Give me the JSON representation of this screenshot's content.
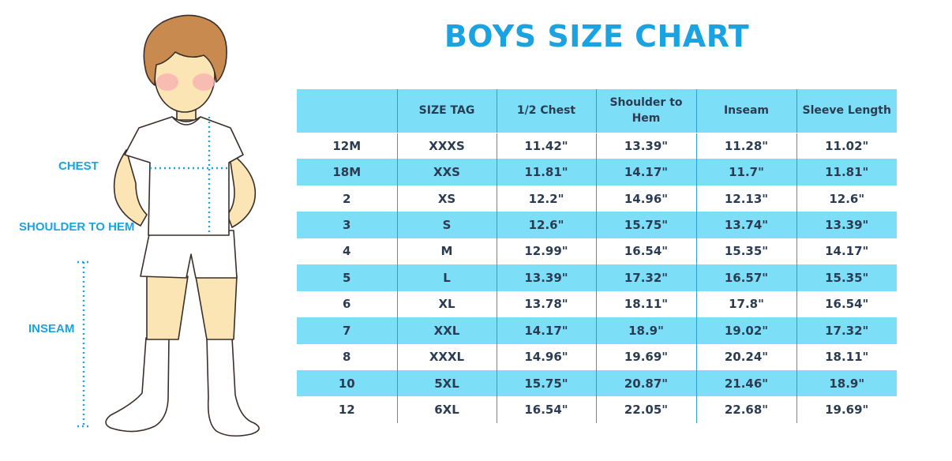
{
  "title": "BOYS SIZE CHART",
  "figure": {
    "labels": {
      "chest": "CHEST",
      "shoulder_to_hem": "SHOULDER TO HEM",
      "inseam": "INSEAM"
    }
  },
  "colors": {
    "title": "#1aa3e0",
    "header_bg": "#7ddff7",
    "stripe_bg": "#7ddff7",
    "text": "#2b3c52",
    "divider": "#2d9fd1",
    "measure_line": "#1aa3e0"
  },
  "table": {
    "headers": [
      "",
      "SIZE TAG",
      "1/2 Chest",
      "Shoulder to Hem",
      "Inseam",
      "Sleeve Length"
    ],
    "rows": [
      [
        "12M",
        "XXXS",
        "11.42\"",
        "13.39\"",
        "11.28\"",
        "11.02\""
      ],
      [
        "18M",
        "XXS",
        "11.81\"",
        "14.17\"",
        "11.7\"",
        "11.81\""
      ],
      [
        "2",
        "XS",
        "12.2\"",
        "14.96\"",
        "12.13\"",
        "12.6\""
      ],
      [
        "3",
        "S",
        "12.6\"",
        "15.75\"",
        "13.74\"",
        "13.39\""
      ],
      [
        "4",
        "M",
        "12.99\"",
        "16.54\"",
        "15.35\"",
        "14.17\""
      ],
      [
        "5",
        "L",
        "13.39\"",
        "17.32\"",
        "16.57\"",
        "15.35\""
      ],
      [
        "6",
        "XL",
        "13.78\"",
        "18.11\"",
        "17.8\"",
        "16.54\""
      ],
      [
        "7",
        "XXL",
        "14.17\"",
        "18.9\"",
        "19.02\"",
        "17.32\""
      ],
      [
        "8",
        "XXXL",
        "14.96\"",
        "19.69\"",
        "20.24\"",
        "18.11\""
      ],
      [
        "10",
        "5XL",
        "15.75\"",
        "20.87\"",
        "21.46\"",
        "18.9\""
      ],
      [
        "12",
        "6XL",
        "16.54\"",
        "22.05\"",
        "22.68\"",
        "19.69\""
      ]
    ]
  }
}
